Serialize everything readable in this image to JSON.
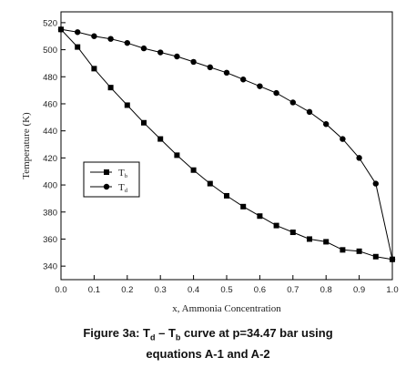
{
  "chart_data": {
    "type": "line",
    "title": "",
    "xlabel": "x, Ammonia Concentration",
    "ylabel": "Temperature (K)",
    "xlim": [
      0.0,
      1.0
    ],
    "ylim": [
      330,
      528
    ],
    "xticks": [
      "0.0",
      "0.1",
      "0.2",
      "0.3",
      "0.4",
      "0.5",
      "0.6",
      "0.7",
      "0.8",
      "0.9",
      "1.0"
    ],
    "yticks": [
      "340",
      "360",
      "380",
      "400",
      "420",
      "440",
      "460",
      "480",
      "500",
      "520"
    ],
    "grid": false,
    "legend_placement": "left-middle",
    "legend": [
      {
        "label": "T",
        "sub": "b",
        "marker": "square"
      },
      {
        "label": "T",
        "sub": "d",
        "marker": "circle"
      }
    ],
    "series": [
      {
        "name": "Tb",
        "marker": "square",
        "x": [
          0.0,
          0.05,
          0.1,
          0.15,
          0.2,
          0.25,
          0.3,
          0.35,
          0.4,
          0.45,
          0.5,
          0.55,
          0.6,
          0.65,
          0.7,
          0.75,
          0.8,
          0.85,
          0.9,
          0.95,
          1.0
        ],
        "y": [
          515,
          502,
          486,
          472,
          459,
          446,
          434,
          422,
          411,
          401,
          392,
          384,
          377,
          370,
          365,
          360,
          358,
          352,
          351,
          347,
          345
        ]
      },
      {
        "name": "Td",
        "marker": "circle",
        "x": [
          0.0,
          0.05,
          0.1,
          0.15,
          0.2,
          0.25,
          0.3,
          0.35,
          0.4,
          0.45,
          0.5,
          0.55,
          0.6,
          0.65,
          0.7,
          0.75,
          0.8,
          0.85,
          0.9,
          0.95,
          1.0
        ],
        "y": [
          515,
          513,
          510,
          508,
          505,
          501,
          498,
          495,
          491,
          487,
          483,
          478,
          473,
          468,
          461,
          454,
          445,
          434,
          420,
          401,
          345
        ]
      }
    ]
  },
  "caption": {
    "line1_a": "Figure 3a: T",
    "line1_sub1": "d",
    "line1_b": " – T",
    "line1_sub2": "b",
    "line1_c": " curve at p=34.47 bar using",
    "line2": "equations A-1 and A-2"
  }
}
